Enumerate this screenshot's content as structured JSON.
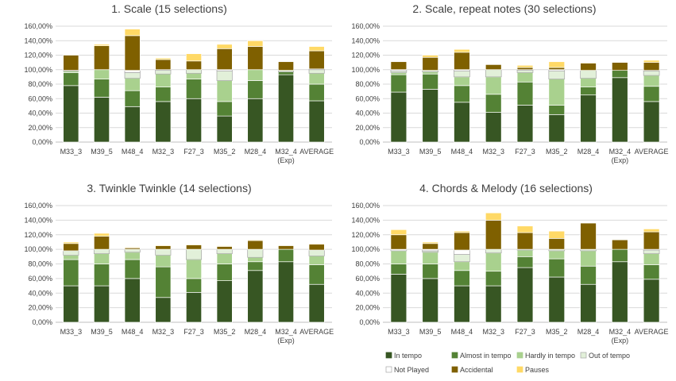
{
  "chart_data": [
    {
      "type": "bar",
      "stacked": true,
      "title": "1. Scale (15 selections)",
      "categories": [
        "M33_3",
        "M39_5",
        "M48_4",
        "M32_3",
        "F27_3",
        "M35_2",
        "M28_4",
        "M32_4\n(Exp)",
        "AVERAGE"
      ],
      "ylim": [
        0,
        160
      ],
      "yticks": [
        "0,00%",
        "20,00%",
        "40,00%",
        "60,00%",
        "80,00%",
        "100,00%",
        "120,00%",
        "140,00%",
        "160,00%"
      ],
      "series": [
        {
          "name": "In tempo",
          "values": [
            78,
            62,
            49,
            56,
            60,
            36,
            60,
            93,
            57
          ]
        },
        {
          "name": "Almost in tempo",
          "values": [
            18,
            25,
            22,
            20,
            27,
            20,
            25,
            4,
            23
          ]
        },
        {
          "name": "Hardly in tempo",
          "values": [
            2,
            13,
            17,
            18,
            8,
            29,
            15,
            0,
            15
          ]
        },
        {
          "name": "Out of tempo",
          "values": [
            0,
            0,
            8,
            5,
            5,
            13,
            0,
            2,
            5
          ]
        },
        {
          "name": "Not Played",
          "values": [
            1,
            0,
            3,
            1,
            0,
            2,
            0,
            0,
            1
          ]
        },
        {
          "name": "Accidental",
          "values": [
            21,
            33,
            48,
            14,
            12,
            29,
            32,
            12,
            25
          ]
        },
        {
          "name": "Pauses",
          "values": [
            0,
            2,
            9,
            2,
            10,
            6,
            8,
            0,
            6
          ]
        }
      ]
    },
    {
      "type": "bar",
      "stacked": true,
      "title": "2. Scale, repeat notes (30 selections)",
      "categories": [
        "M33_3",
        "M39_5",
        "M48_4",
        "M32_3",
        "F27_3",
        "M35_2",
        "M28_4",
        "M32_4\n(Exp)",
        "AVERAGE"
      ],
      "ylim": [
        0,
        160
      ],
      "yticks": [
        "0,00%",
        "20,00%",
        "40,00%",
        "60,00%",
        "80,00%",
        "100,00%",
        "120,00%",
        "140,00%",
        "160,00%"
      ],
      "series": [
        {
          "name": "In tempo",
          "values": [
            69,
            73,
            55,
            41,
            51,
            38,
            65,
            89,
            56
          ]
        },
        {
          "name": "Almost in tempo",
          "values": [
            24,
            21,
            23,
            25,
            32,
            13,
            11,
            10,
            21
          ]
        },
        {
          "name": "Hardly in tempo",
          "values": [
            3,
            3,
            12,
            24,
            13,
            36,
            12,
            0,
            15
          ]
        },
        {
          "name": "Out of tempo",
          "values": [
            2,
            2,
            8,
            10,
            3,
            11,
            11,
            0,
            6
          ]
        },
        {
          "name": "Not Played",
          "values": [
            2,
            0,
            2,
            0,
            1,
            2,
            0,
            0,
            1
          ]
        },
        {
          "name": "Accidental",
          "values": [
            11,
            18,
            24,
            7,
            3,
            3,
            10,
            11,
            11
          ]
        },
        {
          "name": "Pauses",
          "values": [
            0,
            3,
            4,
            0,
            3,
            8,
            1,
            0,
            3
          ]
        }
      ]
    },
    {
      "type": "bar",
      "stacked": true,
      "title": "3. Twinkle Twinkle (14 selections)",
      "categories": [
        "M33_3",
        "M39_5",
        "M48_4",
        "M32_3",
        "F27_3",
        "M35_2",
        "M28_4",
        "M32_4\n(Exp)",
        "AVERAGE"
      ],
      "ylim": [
        0,
        160
      ],
      "yticks": [
        "0,00%",
        "20,00%",
        "40,00%",
        "60,00%",
        "80,00%",
        "100,00%",
        "120,00%",
        "140,00%",
        "160,00%"
      ],
      "series": [
        {
          "name": "In tempo",
          "values": [
            50,
            50,
            60,
            34,
            41,
            57,
            71,
            83,
            52
          ]
        },
        {
          "name": "Almost in tempo",
          "values": [
            36,
            30,
            26,
            42,
            19,
            23,
            12,
            17,
            27
          ]
        },
        {
          "name": "Hardly in tempo",
          "values": [
            6,
            14,
            10,
            16,
            26,
            14,
            6,
            0,
            12
          ]
        },
        {
          "name": "Out of tempo",
          "values": [
            6,
            6,
            4,
            8,
            14,
            6,
            11,
            0,
            8
          ]
        },
        {
          "name": "Not Played",
          "values": [
            0,
            0,
            0,
            0,
            0,
            0,
            0,
            0,
            0
          ]
        },
        {
          "name": "Accidental",
          "values": [
            10,
            18,
            2,
            5,
            6,
            4,
            12,
            5,
            8
          ]
        },
        {
          "name": "Pauses",
          "values": [
            2,
            4,
            1,
            1,
            1,
            1,
            1,
            0,
            1
          ]
        }
      ]
    },
    {
      "type": "bar",
      "stacked": true,
      "title": "4. Chords & Melody (16 selections)",
      "categories": [
        "M33_3",
        "M39_5",
        "M48_4",
        "M32_3",
        "F27_3",
        "M35_2",
        "M28_4",
        "M32_4\n(Exp)",
        "AVERAGE"
      ],
      "ylim": [
        0,
        160
      ],
      "yticks": [
        "0,00%",
        "20,00%",
        "40,00%",
        "60,00%",
        "80,00%",
        "100,00%",
        "120,00%",
        "140,00%",
        "160,00%"
      ],
      "series": [
        {
          "name": "In tempo",
          "values": [
            66,
            60,
            50,
            50,
            75,
            62,
            52,
            83,
            59
          ]
        },
        {
          "name": "Almost in tempo",
          "values": [
            14,
            20,
            21,
            20,
            15,
            25,
            25,
            17,
            20
          ]
        },
        {
          "name": "Hardly in tempo",
          "values": [
            18,
            16,
            12,
            25,
            9,
            11,
            21,
            0,
            15
          ]
        },
        {
          "name": "Out of tempo",
          "values": [
            0,
            2,
            10,
            5,
            1,
            2,
            2,
            0,
            5
          ]
        },
        {
          "name": "Not Played",
          "values": [
            2,
            2,
            6,
            0,
            0,
            0,
            0,
            0,
            1
          ]
        },
        {
          "name": "Accidental",
          "values": [
            20,
            8,
            24,
            40,
            23,
            15,
            36,
            13,
            24
          ]
        },
        {
          "name": "Pauses",
          "values": [
            7,
            2,
            2,
            10,
            9,
            10,
            0,
            0,
            4
          ]
        }
      ]
    }
  ],
  "legend": {
    "items": [
      "In tempo",
      "Almost in tempo",
      "Hardly in tempo",
      "Out of tempo",
      "Not Played",
      "Accidental",
      "Pauses"
    ],
    "colors": [
      "#375623",
      "#548235",
      "#a9d18e",
      "#e2f0d9",
      "#ffffff",
      "#7f6000",
      "#ffd966"
    ]
  }
}
